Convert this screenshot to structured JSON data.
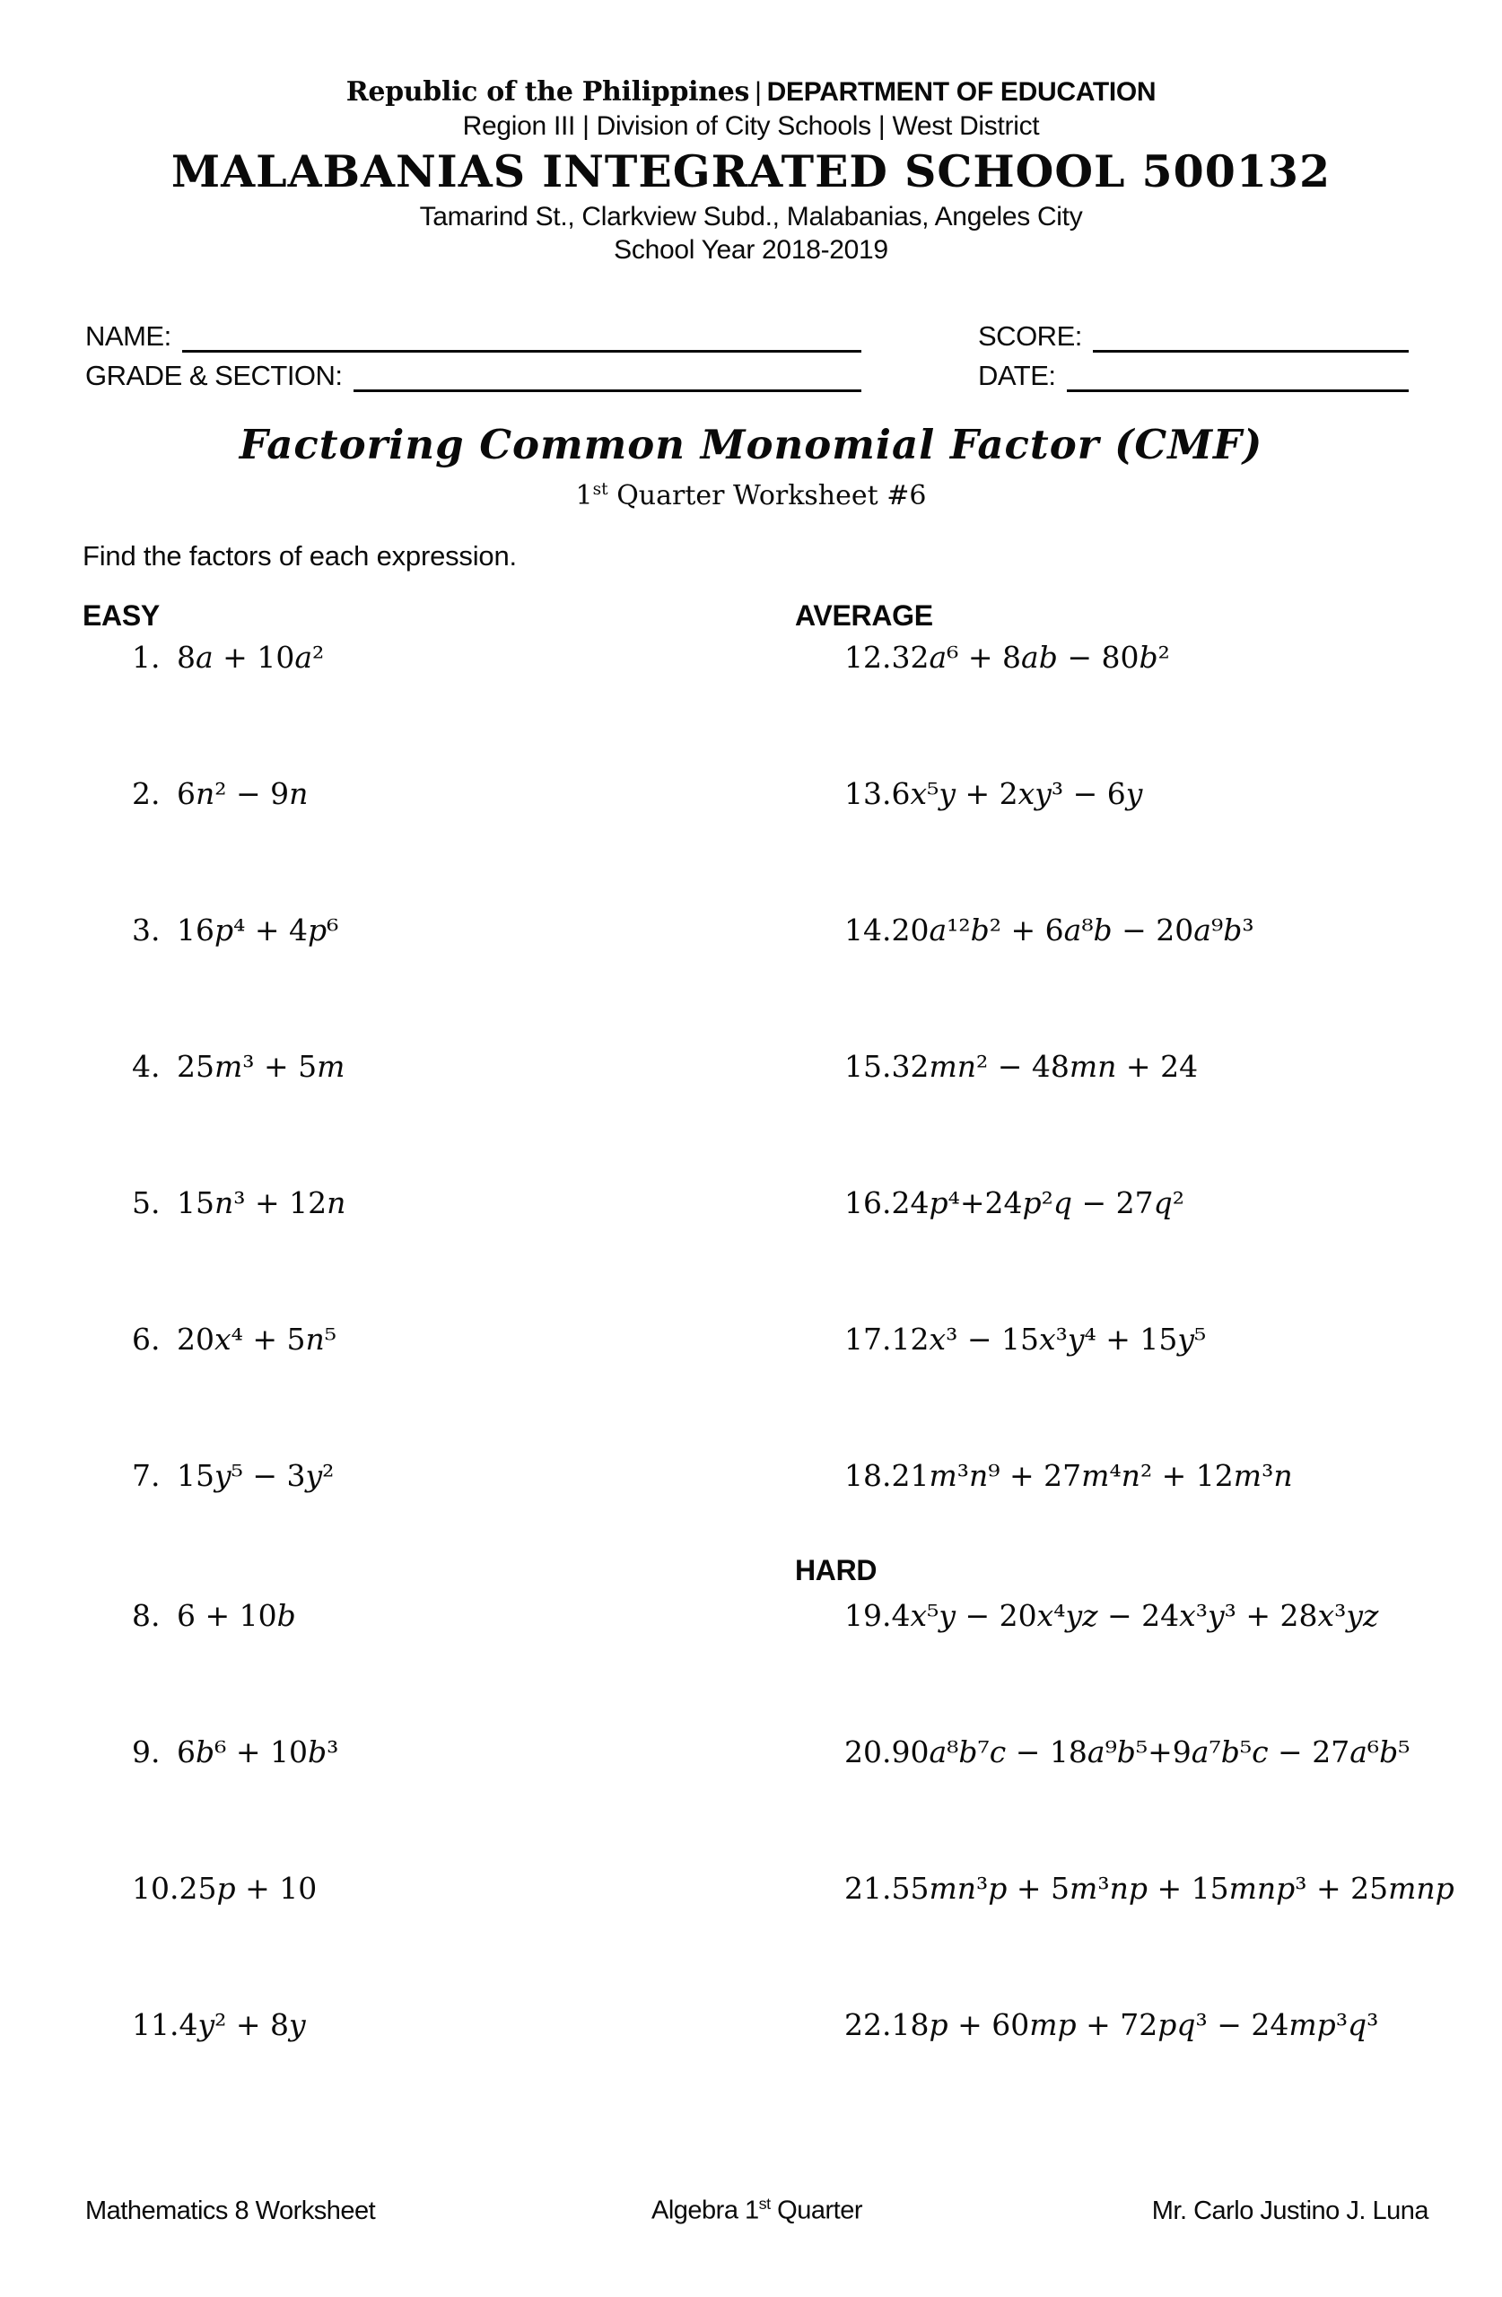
{
  "header": {
    "line1_left": "Republic of the Philippines",
    "line1_sep": "|",
    "line1_right": "DEPARTMENT OF EDUCATION",
    "line2": "Region III | Division of City Schools | West District",
    "school_name": "MALABANIAS INTEGRATED SCHOOL 500132",
    "address": "Tamarind St., Clarkview Subd., Malabanias, Angeles City",
    "school_year": "School Year 2018-2019"
  },
  "form": {
    "name_label": "NAME:",
    "score_label": "SCORE:",
    "grade_label": "GRADE & SECTION:",
    "date_label": "DATE:"
  },
  "title": {
    "main": "Factoring Common Monomial Factor (CMF)",
    "sub_prefix": "1",
    "sub_sup": "st",
    "sub_rest": " Quarter Worksheet #6"
  },
  "instruction": "Find the factors of each expression.",
  "sections": {
    "easy_label": "EASY",
    "average_label": "AVERAGE",
    "hard_label": "HARD"
  },
  "problems": {
    "easy": [
      {
        "num": "1.",
        "expr": "8a + 10a²"
      },
      {
        "num": "2.",
        "expr": "6n² − 9n"
      },
      {
        "num": "3.",
        "expr": "16p⁴ + 4p⁶"
      },
      {
        "num": "4.",
        "expr": "25m³ + 5m"
      },
      {
        "num": "5.",
        "expr": "15n³ + 12n"
      },
      {
        "num": "6.",
        "expr": "20x⁴ + 5n⁵"
      },
      {
        "num": "7.",
        "expr": "15y⁵ − 3y²"
      },
      {
        "num": "8.",
        "expr": "6 + 10b"
      },
      {
        "num": "9.",
        "expr": "6b⁶ + 10b³"
      },
      {
        "num": "10.",
        "expr": "25p + 10"
      },
      {
        "num": "11.",
        "expr": "4y² + 8y"
      }
    ],
    "average": [
      {
        "num": "12.",
        "expr": "32a⁶ + 8ab − 80b²"
      },
      {
        "num": "13.",
        "expr": "6x⁵y + 2xy³ − 6y"
      },
      {
        "num": "14.",
        "expr": "20a¹²b² + 6a⁸b − 20a⁹b³"
      },
      {
        "num": "15.",
        "expr": "32mn² − 48mn + 24"
      },
      {
        "num": "16.",
        "expr": "24p⁴+24p²q − 27q²"
      },
      {
        "num": "17.",
        "expr": "12x³ − 15x³y⁴ + 15y⁵"
      },
      {
        "num": "18.",
        "expr": "21m³n⁹ + 27m⁴n² + 12m³n"
      }
    ],
    "hard": [
      {
        "num": "19.",
        "expr": "4x⁵y − 20x⁴yz − 24x³y³ + 28x³yz"
      },
      {
        "num": "20.",
        "expr": "90a⁸b⁷c − 18a⁹b⁵+9a⁷b⁵c − 27a⁶b⁵"
      },
      {
        "num": "21.",
        "expr": "55mn³p + 5m³np + 15mnp³ + 25mnp"
      },
      {
        "num": "22.",
        "expr": "18p + 60mp + 72pq³ − 24mp³q³"
      }
    ]
  },
  "footer": {
    "left": "Mathematics 8 Worksheet",
    "center_prefix": "Algebra 1",
    "center_sup": "st",
    "center_rest": " Quarter",
    "right": "Mr. Carlo Justino J. Luna"
  }
}
